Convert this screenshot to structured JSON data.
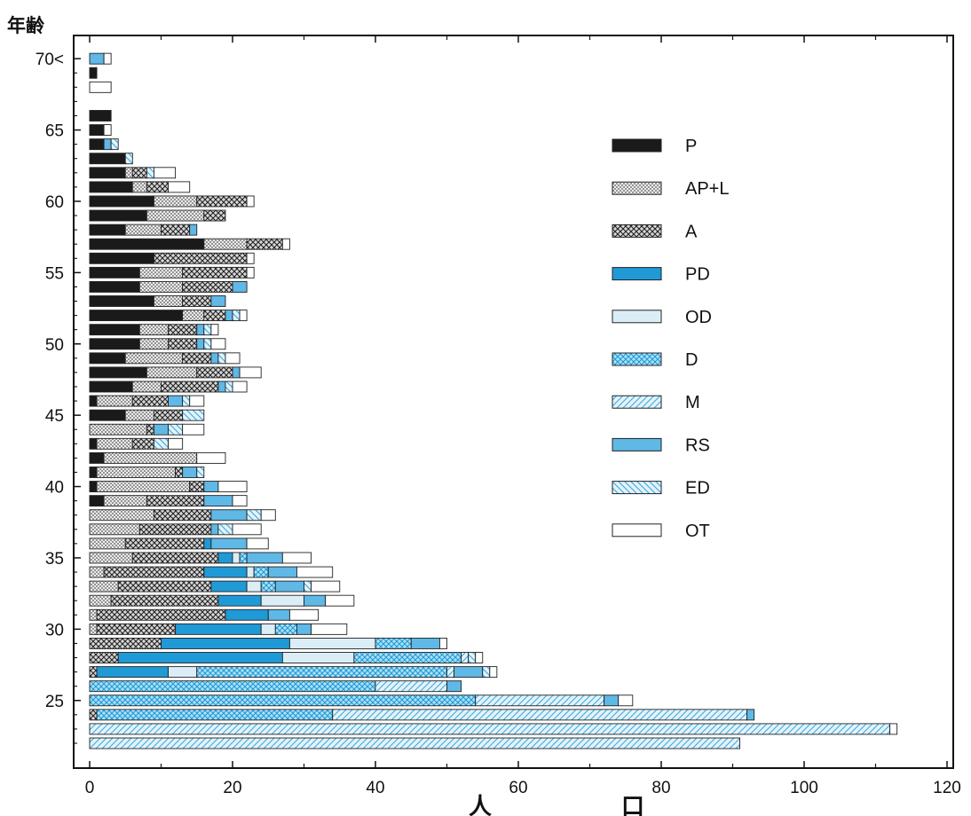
{
  "chart_data": {
    "type": "bar",
    "orientation": "horizontal",
    "stacked": true,
    "ylabel": "年齢",
    "xlabel": "人　口",
    "xlim": [
      0,
      120
    ],
    "x_ticks": [
      "0",
      "20",
      "40",
      "60",
      "80",
      "100",
      "120"
    ],
    "y_ticks": [
      "25",
      "30",
      "35",
      "40",
      "45",
      "50",
      "55",
      "60",
      "65",
      "70<"
    ],
    "legend_position": "right",
    "categories": [
      "22",
      "23",
      "24",
      "25",
      "26",
      "27",
      "28",
      "29",
      "30",
      "31",
      "32",
      "33",
      "34",
      "35",
      "36",
      "37",
      "38",
      "39",
      "40",
      "41",
      "42",
      "43",
      "44",
      "45",
      "46",
      "47",
      "48",
      "49",
      "50",
      "51",
      "52",
      "53",
      "54",
      "55",
      "56",
      "57",
      "58",
      "59",
      "60",
      "61",
      "62",
      "63",
      "64",
      "65",
      "66",
      "67",
      "68",
      "69",
      "70<"
    ],
    "series": [
      {
        "name": "P",
        "color": "#1a1a1a",
        "pattern": "solid",
        "values": [
          0,
          0,
          0,
          0,
          0,
          0,
          0,
          0,
          0,
          0,
          0,
          0,
          0,
          0,
          0,
          0,
          0,
          2,
          1,
          1,
          2,
          1,
          0,
          5,
          1,
          6,
          8,
          5,
          7,
          7,
          13,
          9,
          7,
          7,
          9,
          16,
          5,
          8,
          9,
          6,
          5,
          5,
          2,
          2,
          3,
          0,
          0,
          1,
          0
        ]
      },
      {
        "name": "AP+L",
        "color": "#c8c8c8",
        "pattern": "dots",
        "values": [
          0,
          0,
          0,
          0,
          0,
          0,
          0,
          0,
          1,
          1,
          3,
          4,
          2,
          6,
          5,
          7,
          9,
          6,
          13,
          11,
          13,
          5,
          8,
          4,
          5,
          4,
          7,
          8,
          4,
          4,
          3,
          4,
          6,
          6,
          0,
          6,
          5,
          8,
          6,
          2,
          1,
          0,
          0,
          0,
          0,
          0,
          0,
          0,
          0
        ]
      },
      {
        "name": "A",
        "color": "#b4b4b4",
        "pattern": "cross",
        "values": [
          0,
          0,
          1,
          0,
          0,
          1,
          4,
          10,
          11,
          18,
          15,
          13,
          14,
          12,
          11,
          10,
          8,
          8,
          2,
          1,
          0,
          3,
          1,
          4,
          5,
          8,
          5,
          4,
          4,
          4,
          3,
          4,
          7,
          9,
          13,
          5,
          4,
          3,
          7,
          3,
          2,
          0,
          0,
          0,
          0,
          0,
          0,
          0,
          0
        ]
      },
      {
        "name": "PD",
        "color": "#1f9ad6",
        "pattern": "solid",
        "values": [
          0,
          0,
          0,
          0,
          0,
          10,
          23,
          18,
          12,
          6,
          6,
          5,
          6,
          2,
          1,
          0,
          0,
          0,
          0,
          0,
          0,
          0,
          0,
          0,
          0,
          0,
          0,
          0,
          0,
          0,
          0,
          0,
          0,
          0,
          0,
          0,
          0,
          0,
          0,
          0,
          0,
          0,
          0,
          0,
          0,
          0,
          0,
          0,
          0
        ]
      },
      {
        "name": "OD",
        "color": "#dbeef8",
        "pattern": "solid",
        "values": [
          0,
          0,
          0,
          0,
          0,
          4,
          10,
          12,
          2,
          0,
          6,
          2,
          1,
          1,
          0,
          0,
          0,
          0,
          0,
          0,
          0,
          0,
          0,
          0,
          0,
          0,
          0,
          0,
          0,
          0,
          0,
          0,
          0,
          0,
          0,
          0,
          0,
          0,
          0,
          0,
          0,
          0,
          0,
          0,
          0,
          0,
          0,
          0,
          0
        ]
      },
      {
        "name": "D",
        "color": "#7fcaee",
        "pattern": "cross",
        "values": [
          0,
          0,
          33,
          54,
          40,
          35,
          15,
          5,
          3,
          0,
          0,
          2,
          2,
          1,
          0,
          0,
          0,
          0,
          0,
          0,
          0,
          0,
          0,
          0,
          0,
          0,
          0,
          0,
          0,
          0,
          0,
          0,
          0,
          0,
          0,
          0,
          0,
          0,
          0,
          0,
          0,
          0,
          0,
          0,
          0,
          0,
          0,
          0,
          0
        ]
      },
      {
        "name": "M",
        "color": "#bfe3f5",
        "pattern": "hatch",
        "values": [
          91,
          112,
          58,
          18,
          10,
          1,
          1,
          0,
          0,
          0,
          0,
          0,
          0,
          0,
          0,
          0,
          0,
          0,
          0,
          0,
          0,
          0,
          0,
          0,
          0,
          0,
          0,
          0,
          0,
          0,
          0,
          0,
          0,
          0,
          0,
          0,
          0,
          0,
          0,
          0,
          0,
          0,
          0,
          0,
          0,
          0,
          0,
          0,
          0
        ]
      },
      {
        "name": "RS",
        "color": "#5fb8e6",
        "pattern": "solid",
        "values": [
          0,
          0,
          1,
          2,
          2,
          4,
          0,
          4,
          2,
          3,
          3,
          4,
          4,
          5,
          5,
          1,
          5,
          4,
          2,
          2,
          0,
          0,
          2,
          0,
          2,
          1,
          1,
          1,
          1,
          1,
          1,
          2,
          2,
          0,
          0,
          0,
          1,
          0,
          0,
          0,
          0,
          0,
          1,
          0,
          0,
          0,
          0,
          0,
          2
        ]
      },
      {
        "name": "ED",
        "color": "#9fd5f0",
        "pattern": "hatch-back",
        "values": [
          0,
          0,
          0,
          0,
          0,
          1,
          1,
          0,
          0,
          0,
          0,
          1,
          0,
          0,
          0,
          2,
          2,
          0,
          0,
          1,
          0,
          2,
          2,
          3,
          1,
          1,
          0,
          1,
          1,
          1,
          1,
          0,
          0,
          0,
          0,
          0,
          0,
          0,
          0,
          0,
          1,
          1,
          1,
          0,
          0,
          0,
          0,
          0,
          0
        ]
      },
      {
        "name": "OT",
        "color": "#ffffff",
        "pattern": "solid",
        "values": [
          0,
          1,
          0,
          2,
          0,
          1,
          1,
          1,
          5,
          4,
          4,
          4,
          5,
          4,
          3,
          4,
          2,
          2,
          4,
          0,
          4,
          2,
          3,
          0,
          2,
          2,
          3,
          2,
          2,
          1,
          1,
          0,
          0,
          1,
          1,
          1,
          0,
          0,
          1,
          3,
          3,
          0,
          0,
          1,
          0,
          0,
          3,
          0,
          1
        ]
      }
    ]
  }
}
